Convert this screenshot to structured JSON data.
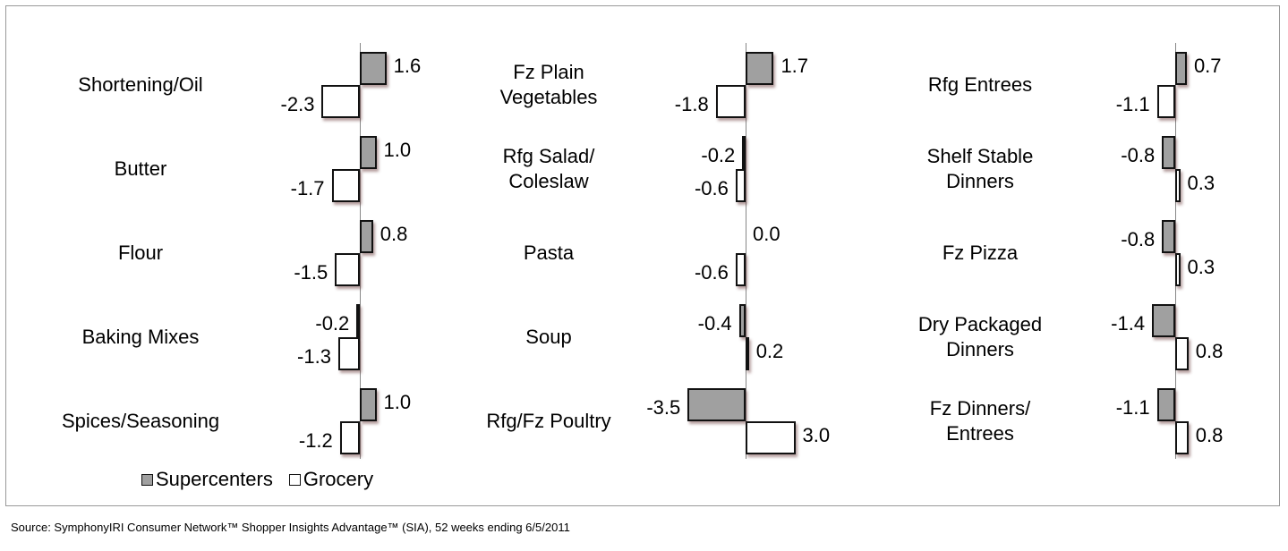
{
  "chart_data": [
    {
      "type": "bar",
      "orientation": "horizontal",
      "categories": [
        "Shortening/Oil",
        "Butter",
        "Flour",
        "Baking Mixes",
        "Spices/Seasoning"
      ],
      "series": [
        {
          "name": "Supercenters",
          "color": "#a0a0a0",
          "values": [
            1.6,
            1.0,
            0.8,
            -0.2,
            1.0
          ],
          "value_labels": [
            "1.6",
            "1.0",
            "0.8",
            "-0.2",
            "1.0"
          ]
        },
        {
          "name": "Grocery",
          "color": "#ffffff",
          "values": [
            -2.3,
            -1.7,
            -1.5,
            -1.3,
            -1.2
          ],
          "value_labels": [
            "-2.3",
            "-1.7",
            "-1.5",
            "-1.3",
            "-1.2"
          ]
        }
      ],
      "xlim": [
        -4,
        4
      ]
    },
    {
      "type": "bar",
      "orientation": "horizontal",
      "categories": [
        "Fz Plain\nVegetables",
        "Rfg Salad/\nColeslaw",
        "Pasta",
        "Soup",
        "Rfg/Fz Poultry"
      ],
      "series": [
        {
          "color": "#a0a0a0",
          "values": [
            1.7,
            -0.2,
            0.0,
            -0.4,
            -3.5
          ],
          "value_labels": [
            "1.7",
            "-0.2",
            "0.0",
            "-0.4",
            "-3.5"
          ]
        },
        {
          "color": "#ffffff",
          "values": [
            -1.8,
            -0.6,
            -0.6,
            0.2,
            3.0
          ],
          "value_labels": [
            "-1.8",
            "-0.6",
            "-0.6",
            "0.2",
            "3.0"
          ]
        }
      ],
      "xlim": [
        -4,
        4
      ]
    },
    {
      "type": "bar",
      "orientation": "horizontal",
      "categories": [
        "Rfg Entrees",
        "Shelf Stable\nDinners",
        "Fz Pizza",
        "Dry Packaged\nDinners",
        "Fz Dinners/\nEntrees"
      ],
      "series": [
        {
          "color": "#a0a0a0",
          "values": [
            0.7,
            -0.8,
            -0.8,
            -1.4,
            -1.1
          ],
          "value_labels": [
            "0.7",
            "-0.8",
            "-0.8",
            "-1.4",
            "-1.1"
          ]
        },
        {
          "color": "#ffffff",
          "values": [
            -1.1,
            0.3,
            0.3,
            0.8,
            0.8
          ],
          "value_labels": [
            "-1.1",
            "0.3",
            "0.3",
            "0.8",
            "0.8"
          ]
        }
      ],
      "xlim": [
        -4,
        4
      ]
    }
  ],
  "source": "Source:  SymphonyIRI Consumer Network™ Shopper Insights Advantage™ (SIA), 52 weeks ending 6/5/2011"
}
